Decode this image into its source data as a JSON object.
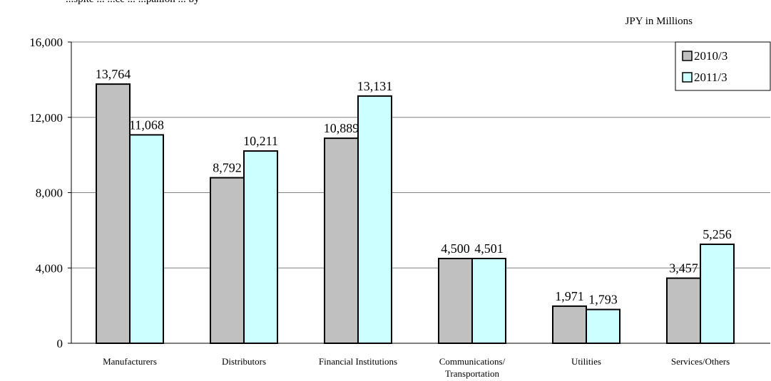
{
  "header": {
    "top_fragment": "...spite ... ...ce ... ...panion ... by",
    "unit": "JPY in Millions"
  },
  "colors": {
    "series_2010": "#c0c0c0",
    "series_2011": "#ccffff",
    "grid": "#808080"
  },
  "chart_data": {
    "type": "bar",
    "title": "",
    "unit": "JPY in Millions",
    "ylim": [
      0,
      16000
    ],
    "yticks": [
      "0",
      "4,000",
      "8,000",
      "12,000",
      "16,000"
    ],
    "ytick_values": [
      0,
      4000,
      8000,
      12000,
      16000
    ],
    "grid": true,
    "legend": "top-right",
    "categories": [
      "Manufacturers",
      "Distributors",
      "Financial Institutions",
      "Communications/ Transportation",
      "Utilities",
      "Services/Others"
    ],
    "series": [
      {
        "name": "2010/3",
        "values": [
          13764,
          8792,
          10889,
          4500,
          1971,
          3457
        ],
        "labels": [
          "13,764",
          "8,792",
          "10,889",
          "4,500",
          "1,971",
          "3,457"
        ]
      },
      {
        "name": "2011/3",
        "values": [
          11068,
          10211,
          13131,
          4501,
          1793,
          5256
        ],
        "labels": [
          "11,068",
          "10,211",
          "13,131",
          "4,501",
          "1,793",
          "5,256"
        ]
      }
    ]
  }
}
